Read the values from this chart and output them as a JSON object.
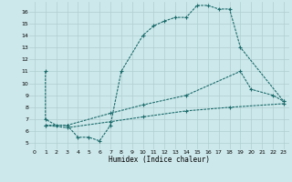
{
  "xlabel": "Humidex (Indice chaleur)",
  "bg_color": "#cde8eb",
  "grid_color": "#b0cdd0",
  "line_color": "#1a6b6b",
  "xlim": [
    -0.5,
    23.5
  ],
  "ylim": [
    4.5,
    16.8
  ],
  "yticks": [
    5,
    6,
    7,
    8,
    9,
    10,
    11,
    12,
    13,
    14,
    15,
    16
  ],
  "xticks": [
    0,
    1,
    2,
    3,
    4,
    5,
    6,
    7,
    8,
    9,
    10,
    11,
    12,
    13,
    14,
    15,
    16,
    17,
    18,
    19,
    20,
    21,
    22,
    23
  ],
  "curve1_x": [
    1,
    1,
    2,
    3,
    4,
    5,
    6,
    7,
    8,
    10,
    11,
    12,
    13,
    14,
    15,
    16,
    17,
    18,
    19,
    23
  ],
  "curve1_y": [
    11,
    7.0,
    6.5,
    6.5,
    5.5,
    5.5,
    5.2,
    6.5,
    11.0,
    14.0,
    14.8,
    15.2,
    15.5,
    15.5,
    16.5,
    16.5,
    16.2,
    16.2,
    13.0,
    8.5
  ],
  "curve2_x": [
    1,
    3,
    7,
    10,
    14,
    19,
    20,
    22,
    23
  ],
  "curve2_y": [
    6.5,
    6.5,
    7.5,
    8.2,
    9.0,
    11.0,
    9.5,
    9.0,
    8.5
  ],
  "curve3_x": [
    1,
    3,
    7,
    10,
    14,
    18,
    23
  ],
  "curve3_y": [
    6.5,
    6.3,
    6.8,
    7.2,
    7.7,
    8.0,
    8.3
  ]
}
